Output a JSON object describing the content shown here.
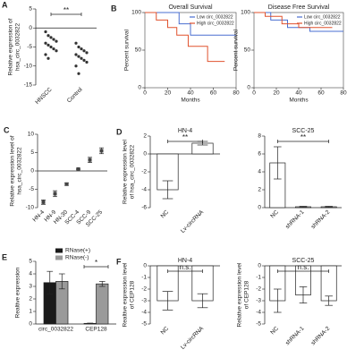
{
  "chart_data": [
    {
      "type": "strip",
      "panel": "A",
      "ylabel": [
        "Relative expression of",
        "hsa_circ_0032822"
      ],
      "categories": [
        "HNSCC",
        "Control"
      ],
      "values": [
        [
          -1,
          -2,
          -2.5,
          -3,
          -3.5,
          -4,
          -4.5,
          -5,
          -5.5,
          -6,
          -7,
          -8
        ],
        [
          -4,
          -5,
          -5.5,
          -6,
          -6.5,
          -7,
          -7.5,
          -8,
          -8.5,
          -9,
          -10,
          -12
        ]
      ],
      "color": "#333333",
      "ylim": [
        -15,
        5
      ],
      "yticks": [
        5,
        0,
        -5,
        -10,
        -15
      ],
      "significance": "**"
    },
    {
      "type": "line",
      "panel": "B",
      "title": "Overall Survival",
      "ylabel": [
        "Percent survival"
      ],
      "xlabel": "Months",
      "xlim": [
        0,
        80
      ],
      "xticks": [
        0,
        20,
        40,
        60,
        80
      ],
      "ylim": [
        0,
        100
      ],
      "yticks": [
        0,
        50,
        100
      ],
      "legend": "top-right",
      "series": [
        {
          "name": "Low circ_0032822",
          "color": "#4a6fd1",
          "x": [
            0,
            30,
            30,
            40,
            40,
            80
          ],
          "values": [
            100,
            100,
            85,
            85,
            70,
            70
          ]
        },
        {
          "name": "High circ_0032822",
          "color": "#e0522e",
          "x": [
            0,
            10,
            10,
            20,
            20,
            28,
            28,
            38,
            38,
            55,
            55,
            70
          ],
          "values": [
            100,
            100,
            90,
            90,
            80,
            80,
            70,
            70,
            55,
            55,
            35,
            35
          ]
        }
      ]
    },
    {
      "type": "line",
      "title": "Disease Free Survival",
      "ylabel": [
        "Percent survival"
      ],
      "xlabel": "Months",
      "xlim": [
        0,
        80
      ],
      "xticks": [
        0,
        20,
        40,
        60,
        80
      ],
      "ylim": [
        0,
        100
      ],
      "yticks": [
        0,
        50,
        100
      ],
      "legend": "top-right",
      "series": [
        {
          "name": "Low circ_0032822",
          "color": "#4a6fd1",
          "x": [
            0,
            15,
            15,
            30,
            30,
            50,
            50,
            80
          ],
          "values": [
            100,
            100,
            90,
            90,
            80,
            80,
            75,
            75
          ]
        },
        {
          "name": "High circ_0032822",
          "color": "#e0522e",
          "x": [
            0,
            10,
            10,
            25,
            25,
            40,
            40,
            70
          ],
          "values": [
            100,
            100,
            95,
            95,
            85,
            85,
            80,
            80
          ]
        }
      ]
    },
    {
      "type": "dot",
      "panel": "C",
      "ylabel": [
        "Relative expression level of",
        "hsa_circ_0032822"
      ],
      "categories": [
        "HN-4",
        "HN-9",
        "HN-30",
        "SCC-4",
        "SCC-9",
        "SCC-25"
      ],
      "values": [
        -8.5,
        -6.2,
        -3.6,
        0.5,
        3,
        5.5
      ],
      "errors": [
        0.6,
        0.8,
        0.3,
        0.2,
        0.7,
        0.8
      ],
      "color": "#444444",
      "ylim": [
        -10,
        10
      ],
      "yticks": [
        -10,
        -5,
        0,
        5,
        10
      ]
    },
    {
      "type": "bar",
      "panel": "D",
      "title": "HN-4",
      "ylabel": [
        "Relative expression level",
        "of hsa_circ_0032822"
      ],
      "categories": [
        "NC",
        "Lv-circRNA"
      ],
      "values": [
        -4,
        1.2
      ],
      "errors": [
        1,
        0.2
      ],
      "color": "#ffffff",
      "ylim": [
        -6,
        2
      ],
      "yticks": [
        -6,
        -4,
        -2,
        0,
        2
      ],
      "significance": "**"
    },
    {
      "type": "bar",
      "title": "SCC-25",
      "categories": [
        "NC",
        "shRNA-1",
        "shRNA-2"
      ],
      "values": [
        5,
        0.1,
        0.1
      ],
      "errors": [
        1.8,
        0.05,
        0.05
      ],
      "color": "#ffffff",
      "ylim": [
        0,
        8
      ],
      "yticks": [
        0,
        2,
        4,
        6,
        8
      ],
      "significance": "**"
    },
    {
      "type": "bar",
      "panel": "E",
      "ylabel": [
        "Realtive expression"
      ],
      "categories": [
        "circ_0032822",
        "CEP128"
      ],
      "legend": "top-left",
      "series": [
        {
          "name": "RNase(+)",
          "color": "#1a1a1a",
          "values": [
            3.3,
            0.05
          ],
          "errors": [
            0.9,
            0.02
          ]
        },
        {
          "name": "RNase(-)",
          "color": "#9a9a9a",
          "values": [
            3.4,
            3.2
          ],
          "errors": [
            0.6,
            0.2
          ]
        }
      ],
      "ylim": [
        0,
        5
      ],
      "yticks": [
        0,
        1,
        2,
        3,
        4,
        5
      ],
      "significance": "*"
    },
    {
      "type": "bar",
      "panel": "F",
      "title": "HN-4",
      "ylabel": [
        "Realtive expression level",
        "of CEP128"
      ],
      "categories": [
        "NC",
        "Lv-circRNA"
      ],
      "values": [
        -3,
        -3
      ],
      "errors": [
        0.8,
        0.6
      ],
      "color": "#ffffff",
      "ylim": [
        -5,
        0
      ],
      "yticks": [
        -5,
        -4,
        -3,
        -2,
        -1,
        0
      ],
      "significance": "n.s."
    },
    {
      "type": "bar",
      "title": "SCC-25",
      "ylabel": [
        "Relative expression level",
        "of CEP128"
      ],
      "categories": [
        "NC",
        "shRNA-1",
        "shRNA-2"
      ],
      "values": [
        -3,
        -2.5,
        -3
      ],
      "errors": [
        1,
        0.7,
        0.4
      ],
      "color": "#ffffff",
      "ylim": [
        -5,
        0
      ],
      "yticks": [
        -5,
        -4,
        -3,
        -2,
        -1,
        0
      ],
      "significance": "n.s."
    }
  ]
}
